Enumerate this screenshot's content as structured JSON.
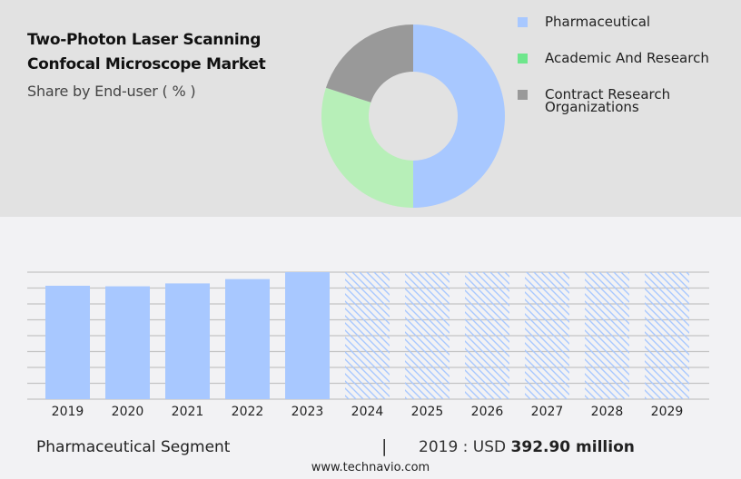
{
  "header": {
    "title_line1": "Two-Photon Laser Scanning",
    "title_line2": "Confocal Microscope Market",
    "subtitle": "Share by End-user ( % )"
  },
  "legend": [
    {
      "label": "Pharmaceutical",
      "color": "#a8c8ff"
    },
    {
      "label": "Academic And Research",
      "color": "#6ee68c"
    },
    {
      "label": "Contract Research",
      "label2": "Organizations",
      "color": "#999999"
    }
  ],
  "footer": {
    "segment": "Pharmaceutical Segment",
    "separator": "|",
    "value_prefix": "2019 : USD ",
    "value_bold": "392.90 million",
    "site": "www.technavio.com"
  },
  "chart_data": [
    {
      "type": "pie",
      "title": "Two-Photon Laser Scanning Confocal Microscope Market - Share by End-user ( % )",
      "style": "donut",
      "categories": [
        "Pharmaceutical",
        "Academic And Research",
        "Contract Research Organizations"
      ],
      "values": [
        50,
        30,
        20
      ],
      "colors": [
        "#a8c8ff",
        "#b7efb8",
        "#999999"
      ],
      "legend_position": "right"
    },
    {
      "type": "bar",
      "title": "Pharmaceutical Segment",
      "categories": [
        "2019",
        "2020",
        "2021",
        "2022",
        "2023",
        "2024",
        "2025",
        "2026",
        "2027",
        "2028",
        "2029"
      ],
      "values": [
        392.9,
        391,
        401,
        416,
        440,
        null,
        null,
        null,
        null,
        null,
        null
      ],
      "forecast": [
        false,
        false,
        false,
        false,
        false,
        true,
        true,
        true,
        true,
        true,
        true
      ],
      "annotation": "2019 : USD 392.90 million",
      "xlabel": "",
      "ylabel": "",
      "grid": true,
      "bar_color": "#a8c8ff",
      "forecast_style": "hatched"
    }
  ]
}
